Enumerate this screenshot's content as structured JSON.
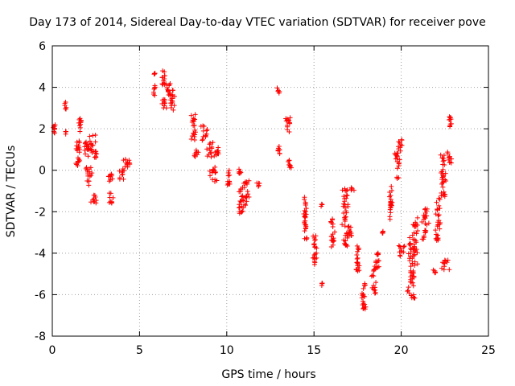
{
  "chart_data": {
    "type": "scatter",
    "title": "Day 173 of 2014, Sidereal Day-to-day VTEC variation (SDTVAR) for receiver pove",
    "xlabel": "GPS time / hours",
    "ylabel": "SDTVAR / TECUs",
    "xlim": [
      0,
      25
    ],
    "ylim": [
      -8,
      6
    ],
    "xticks": [
      0,
      5,
      10,
      15,
      20,
      25
    ],
    "yticks": [
      -8,
      -6,
      -4,
      -2,
      0,
      2,
      4,
      6
    ],
    "grid": true,
    "marker": "plus",
    "series_color": "#ff0000",
    "clusters": [
      {
        "x": [
          0.05,
          0.2
        ],
        "y": [
          1.6,
          2.2
        ]
      },
      {
        "x": [
          0.7,
          0.8
        ],
        "y": [
          2.9,
          3.3
        ]
      },
      {
        "x": [
          0.75,
          0.8
        ],
        "y": [
          1.7,
          1.9
        ]
      },
      {
        "x": [
          1.3,
          1.7
        ],
        "y": [
          0.2,
          0.6
        ]
      },
      {
        "x": [
          1.35,
          1.6
        ],
        "y": [
          0.8,
          1.6
        ]
      },
      {
        "x": [
          1.5,
          1.7
        ],
        "y": [
          1.8,
          2.5
        ]
      },
      {
        "x": [
          1.7,
          2.2
        ],
        "y": [
          0.6,
          1.4
        ]
      },
      {
        "x": [
          1.9,
          2.3
        ],
        "y": [
          -0.8,
          0.2
        ]
      },
      {
        "x": [
          2.1,
          2.6
        ],
        "y": [
          -1.6,
          -1.2
        ]
      },
      {
        "x": [
          2.0,
          2.5
        ],
        "y": [
          0.8,
          1.7
        ]
      },
      {
        "x": [
          2.4,
          2.6
        ],
        "y": [
          0.5,
          1.0
        ]
      },
      {
        "x": [
          3.2,
          3.5
        ],
        "y": [
          -1.6,
          -1.1
        ]
      },
      {
        "x": [
          3.2,
          3.5
        ],
        "y": [
          -0.6,
          -0.1
        ]
      },
      {
        "x": [
          3.8,
          4.2
        ],
        "y": [
          -0.5,
          0.0
        ]
      },
      {
        "x": [
          4.0,
          4.5
        ],
        "y": [
          0.0,
          0.6
        ]
      },
      {
        "x": [
          5.8,
          5.9
        ],
        "y": [
          3.6,
          4.1
        ]
      },
      {
        "x": [
          5.8,
          5.9
        ],
        "y": [
          4.6,
          4.7
        ]
      },
      {
        "x": [
          6.2,
          6.5
        ],
        "y": [
          4.1,
          4.8
        ]
      },
      {
        "x": [
          6.2,
          6.6
        ],
        "y": [
          3.0,
          3.5
        ]
      },
      {
        "x": [
          6.4,
          6.9
        ],
        "y": [
          3.6,
          4.3
        ]
      },
      {
        "x": [
          6.7,
          7.1
        ],
        "y": [
          2.9,
          3.9
        ]
      },
      {
        "x": [
          7.9,
          8.3
        ],
        "y": [
          1.4,
          2.7
        ]
      },
      {
        "x": [
          8.1,
          8.4
        ],
        "y": [
          0.6,
          1.0
        ]
      },
      {
        "x": [
          8.5,
          8.9
        ],
        "y": [
          1.4,
          2.2
        ]
      },
      {
        "x": [
          8.8,
          9.3
        ],
        "y": [
          0.6,
          1.4
        ]
      },
      {
        "x": [
          9.0,
          9.5
        ],
        "y": [
          -0.6,
          0.2
        ]
      },
      {
        "x": [
          9.3,
          9.7
        ],
        "y": [
          0.7,
          1.1
        ]
      },
      {
        "x": [
          10.0,
          10.2
        ],
        "y": [
          -0.8,
          0.0
        ]
      },
      {
        "x": [
          10.6,
          10.9
        ],
        "y": [
          -0.2,
          0.1
        ]
      },
      {
        "x": [
          10.6,
          11.0
        ],
        "y": [
          -2.1,
          -0.8
        ]
      },
      {
        "x": [
          10.9,
          11.3
        ],
        "y": [
          -1.8,
          -0.4
        ]
      },
      {
        "x": [
          11.7,
          11.9
        ],
        "y": [
          -0.9,
          -0.6
        ]
      },
      {
        "x": [
          12.85,
          13.05
        ],
        "y": [
          3.7,
          4.0
        ]
      },
      {
        "x": [
          12.9,
          13.1
        ],
        "y": [
          0.7,
          1.2
        ]
      },
      {
        "x": [
          13.3,
          13.7
        ],
        "y": [
          1.8,
          2.6
        ]
      },
      {
        "x": [
          13.5,
          13.7
        ],
        "y": [
          0.1,
          0.7
        ]
      },
      {
        "x": [
          14.4,
          14.6
        ],
        "y": [
          -3.5,
          -1.2
        ]
      },
      {
        "x": [
          14.9,
          15.2
        ],
        "y": [
          -4.7,
          -3.1
        ]
      },
      {
        "x": [
          15.4,
          15.5
        ],
        "y": [
          -1.8,
          -1.6
        ]
      },
      {
        "x": [
          15.4,
          15.5
        ],
        "y": [
          -5.6,
          -5.4
        ]
      },
      {
        "x": [
          15.9,
          16.2
        ],
        "y": [
          -3.7,
          -2.3
        ]
      },
      {
        "x": [
          16.6,
          17.0
        ],
        "y": [
          -3.9,
          -0.8
        ]
      },
      {
        "x": [
          16.9,
          17.2
        ],
        "y": [
          -3.4,
          -2.7
        ]
      },
      {
        "x": [
          17.0,
          17.3
        ],
        "y": [
          -1.0,
          -0.8
        ]
      },
      {
        "x": [
          17.4,
          17.6
        ],
        "y": [
          -5.0,
          -3.5
        ]
      },
      {
        "x": [
          17.7,
          18.0
        ],
        "y": [
          -6.7,
          -5.2
        ]
      },
      {
        "x": [
          18.3,
          18.6
        ],
        "y": [
          -6.0,
          -4.6
        ]
      },
      {
        "x": [
          18.5,
          18.8
        ],
        "y": [
          -4.7,
          -3.9
        ]
      },
      {
        "x": [
          18.9,
          19.0
        ],
        "y": [
          -3.1,
          -2.9
        ]
      },
      {
        "x": [
          19.3,
          19.5
        ],
        "y": [
          -2.4,
          -0.7
        ]
      },
      {
        "x": [
          19.6,
          20.0
        ],
        "y": [
          -0.4,
          0.9
        ]
      },
      {
        "x": [
          19.8,
          20.1
        ],
        "y": [
          0.9,
          1.5
        ]
      },
      {
        "x": [
          19.8,
          20.2
        ],
        "y": [
          -4.2,
          -3.6
        ]
      },
      {
        "x": [
          20.3,
          20.9
        ],
        "y": [
          -6.2,
          -3.2
        ]
      },
      {
        "x": [
          20.5,
          21.0
        ],
        "y": [
          -4.6,
          -2.2
        ]
      },
      {
        "x": [
          21.1,
          21.6
        ],
        "y": [
          -3.4,
          -1.8
        ]
      },
      {
        "x": [
          21.8,
          22.1
        ],
        "y": [
          -5.0,
          -4.8
        ]
      },
      {
        "x": [
          21.9,
          22.3
        ],
        "y": [
          -3.4,
          -1.3
        ]
      },
      {
        "x": [
          22.2,
          22.6
        ],
        "y": [
          -1.4,
          0.9
        ]
      },
      {
        "x": [
          22.3,
          22.8
        ],
        "y": [
          -4.8,
          -4.3
        ]
      },
      {
        "x": [
          22.6,
          22.9
        ],
        "y": [
          0.3,
          0.9
        ]
      },
      {
        "x": [
          22.7,
          22.9
        ],
        "y": [
          1.9,
          2.6
        ]
      }
    ]
  }
}
